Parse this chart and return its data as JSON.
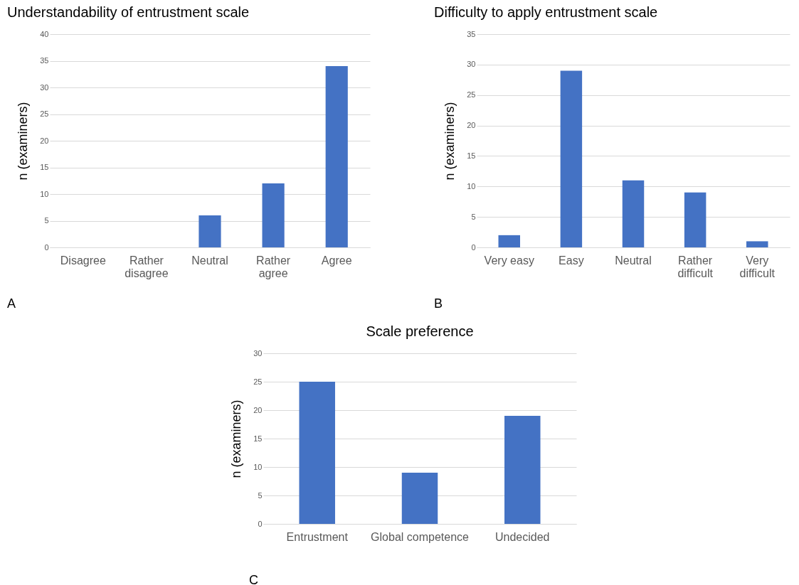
{
  "chart_data": [
    {
      "type": "bar",
      "title": "Understandability of entrustment scale",
      "ylabel": "n (examiners)",
      "categories": [
        "Disagree",
        "Rather disagree",
        "Neutral",
        "Rather agree",
        "Agree"
      ],
      "values": [
        0,
        0,
        6,
        12,
        34
      ],
      "color": "#4472c4",
      "ylim": [
        0,
        40
      ],
      "yticks": [
        0,
        5,
        10,
        15,
        20,
        25,
        30,
        35,
        40
      ],
      "grid": "y",
      "annotations": [
        "A"
      ]
    },
    {
      "type": "bar",
      "title": "Difficulty to apply entrustment scale",
      "ylabel": "n (examiners)",
      "categories": [
        "Very easy",
        "Easy",
        "Neutral",
        "Rather difficult",
        "Very difficult"
      ],
      "values": [
        2,
        29,
        11,
        9,
        1
      ],
      "color": "#4472c4",
      "ylim": [
        0,
        35
      ],
      "yticks": [
        0,
        5,
        10,
        15,
        20,
        25,
        30,
        35
      ],
      "grid": "y",
      "annotations": [
        "B"
      ]
    },
    {
      "type": "bar",
      "title": "Scale preference",
      "ylabel": "n (examiners)",
      "categories": [
        "Entrustment",
        "Global competence",
        "Undecided"
      ],
      "values": [
        25,
        9,
        19
      ],
      "color": "#4472c4",
      "ylim": [
        0,
        30
      ],
      "yticks": [
        0,
        5,
        10,
        15,
        20,
        25,
        30
      ],
      "grid": "y",
      "annotations": [
        "C"
      ]
    }
  ]
}
